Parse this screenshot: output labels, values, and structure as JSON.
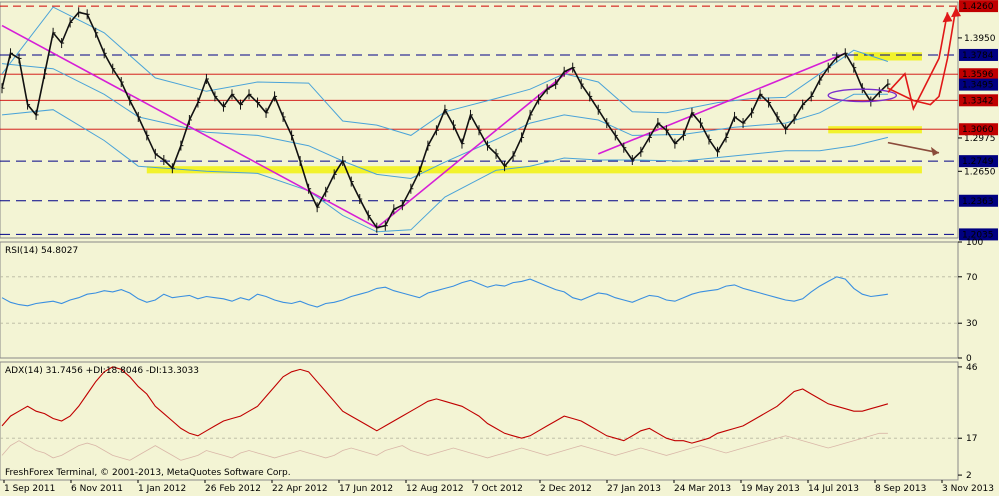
{
  "chart_data": {
    "type": "line",
    "colors": {
      "background": "#f3f4d4",
      "price": "#111111",
      "bands": "#4aa3d8",
      "trendline": "#d61ed6",
      "support_zone": "#f2f21a",
      "resistance_line": "#d00000",
      "dashed_level": "#000088",
      "rsi": "#3a8fe0",
      "adx": "#c00000",
      "projection": "#e01818",
      "arrow_brown": "#8a4b3a"
    },
    "x_labels": [
      "1 Sep 2011",
      "6 Nov 2011",
      "1 Jan 2012",
      "26 Feb 2012",
      "22 Apr 2012",
      "17 Jun 2012",
      "12 Aug 2012",
      "7 Oct 2012",
      "2 Dec 2012",
      "27 Jan 2013",
      "24 Mar 2013",
      "19 May 2013",
      "14 Jul 2013",
      "8 Sep 2013",
      "3 Nov 2013"
    ],
    "main": {
      "ylim": [
        1.2,
        1.43
      ],
      "y_ticks": [
        1.395,
        1.2975,
        1.265
      ],
      "tagged_levels": [
        {
          "label": "1.4260",
          "value": 1.426,
          "style": "red-box",
          "line": "dashed-red"
        },
        {
          "label": "1.3784",
          "value": 1.3784,
          "style": "blue-box",
          "line": "dashed-blue"
        },
        {
          "label": "1.3596",
          "value": 1.3596,
          "style": "red-box",
          "line": "solid-red"
        },
        {
          "label": "1.3495",
          "value": 1.3495,
          "style": "blue-box",
          "line": "none"
        },
        {
          "label": "1.3342",
          "value": 1.3342,
          "style": "red-box",
          "line": "solid-red"
        },
        {
          "label": "1.3060",
          "value": 1.306,
          "style": "red-box",
          "line": "solid-red"
        },
        {
          "label": "1.2749",
          "value": 1.2749,
          "style": "blue-box",
          "line": "dashed-blue"
        },
        {
          "label": "1.2363",
          "value": 1.2363,
          "style": "blue-box",
          "line": "dashed-blue"
        },
        {
          "label": "1.2035",
          "value": 1.2035,
          "style": "blue-box",
          "line": "dashed-blue"
        }
      ],
      "price_path": [
        [
          0,
          1.346
        ],
        [
          1,
          1.38
        ],
        [
          2,
          1.375
        ],
        [
          3,
          1.33
        ],
        [
          4,
          1.32
        ],
        [
          5,
          1.36
        ],
        [
          6,
          1.4
        ],
        [
          7,
          1.39
        ],
        [
          8,
          1.41
        ],
        [
          9,
          1.42
        ],
        [
          10,
          1.418
        ],
        [
          11,
          1.4
        ],
        [
          12,
          1.38
        ],
        [
          13,
          1.365
        ],
        [
          14,
          1.352
        ],
        [
          15,
          1.334
        ],
        [
          16,
          1.318
        ],
        [
          17,
          1.3
        ],
        [
          18,
          1.282
        ],
        [
          19,
          1.276
        ],
        [
          20,
          1.268
        ],
        [
          21,
          1.29
        ],
        [
          22,
          1.315
        ],
        [
          23,
          1.332
        ],
        [
          24,
          1.355
        ],
        [
          25,
          1.338
        ],
        [
          26,
          1.328
        ],
        [
          27,
          1.34
        ],
        [
          28,
          1.33
        ],
        [
          29,
          1.34
        ],
        [
          30,
          1.332
        ],
        [
          31,
          1.322
        ],
        [
          32,
          1.338
        ],
        [
          33,
          1.318
        ],
        [
          34,
          1.3
        ],
        [
          35,
          1.275
        ],
        [
          36,
          1.248
        ],
        [
          37,
          1.23
        ],
        [
          38,
          1.245
        ],
        [
          39,
          1.262
        ],
        [
          40,
          1.275
        ],
        [
          41,
          1.255
        ],
        [
          42,
          1.238
        ],
        [
          43,
          1.222
        ],
        [
          44,
          1.21
        ],
        [
          45,
          1.212
        ],
        [
          46,
          1.228
        ],
        [
          47,
          1.232
        ],
        [
          48,
          1.248
        ],
        [
          49,
          1.265
        ],
        [
          50,
          1.29
        ],
        [
          51,
          1.305
        ],
        [
          52,
          1.325
        ],
        [
          53,
          1.31
        ],
        [
          54,
          1.292
        ],
        [
          55,
          1.32
        ],
        [
          56,
          1.305
        ],
        [
          57,
          1.29
        ],
        [
          58,
          1.282
        ],
        [
          59,
          1.27
        ],
        [
          60,
          1.28
        ],
        [
          61,
          1.298
        ],
        [
          62,
          1.32
        ],
        [
          63,
          1.335
        ],
        [
          64,
          1.345
        ],
        [
          65,
          1.35
        ],
        [
          66,
          1.362
        ],
        [
          67,
          1.366
        ],
        [
          68,
          1.35
        ],
        [
          69,
          1.338
        ],
        [
          70,
          1.325
        ],
        [
          71,
          1.312
        ],
        [
          72,
          1.3
        ],
        [
          73,
          1.288
        ],
        [
          74,
          1.276
        ],
        [
          75,
          1.284
        ],
        [
          76,
          1.298
        ],
        [
          77,
          1.312
        ],
        [
          78,
          1.305
        ],
        [
          79,
          1.292
        ],
        [
          80,
          1.3
        ],
        [
          81,
          1.322
        ],
        [
          82,
          1.312
        ],
        [
          83,
          1.296
        ],
        [
          84,
          1.284
        ],
        [
          85,
          1.298
        ],
        [
          86,
          1.318
        ],
        [
          87,
          1.312
        ],
        [
          88,
          1.322
        ],
        [
          89,
          1.34
        ],
        [
          90,
          1.332
        ],
        [
          91,
          1.318
        ],
        [
          92,
          1.306
        ],
        [
          93,
          1.316
        ],
        [
          94,
          1.33
        ],
        [
          95,
          1.338
        ],
        [
          96,
          1.354
        ],
        [
          97,
          1.366
        ],
        [
          98,
          1.376
        ],
        [
          99,
          1.38
        ],
        [
          100,
          1.366
        ],
        [
          101,
          1.346
        ],
        [
          102,
          1.333
        ],
        [
          103,
          1.342
        ],
        [
          104,
          1.35
        ]
      ],
      "upper_band": [
        [
          0,
          1.36
        ],
        [
          6,
          1.425
        ],
        [
          12,
          1.4
        ],
        [
          18,
          1.356
        ],
        [
          24,
          1.343
        ],
        [
          30,
          1.352
        ],
        [
          36,
          1.351
        ],
        [
          40,
          1.314
        ],
        [
          44,
          1.31
        ],
        [
          48,
          1.3
        ],
        [
          52,
          1.323
        ],
        [
          58,
          1.336
        ],
        [
          62,
          1.345
        ],
        [
          66,
          1.36
        ],
        [
          70,
          1.352
        ],
        [
          74,
          1.323
        ],
        [
          78,
          1.322
        ],
        [
          84,
          1.332
        ],
        [
          88,
          1.336
        ],
        [
          92,
          1.337
        ],
        [
          96,
          1.36
        ],
        [
          100,
          1.383
        ],
        [
          104,
          1.372
        ]
      ],
      "lower_band": [
        [
          0,
          1.32
        ],
        [
          6,
          1.325
        ],
        [
          12,
          1.295
        ],
        [
          16,
          1.27
        ],
        [
          24,
          1.265
        ],
        [
          30,
          1.263
        ],
        [
          36,
          1.246
        ],
        [
          40,
          1.222
        ],
        [
          44,
          1.206
        ],
        [
          48,
          1.208
        ],
        [
          52,
          1.24
        ],
        [
          58,
          1.266
        ],
        [
          62,
          1.27
        ],
        [
          66,
          1.278
        ],
        [
          70,
          1.276
        ],
        [
          74,
          1.276
        ],
        [
          80,
          1.275
        ],
        [
          86,
          1.28
        ],
        [
          92,
          1.285
        ],
        [
          96,
          1.285
        ],
        [
          100,
          1.29
        ],
        [
          104,
          1.298
        ]
      ],
      "middle_band": [
        [
          0,
          1.37
        ],
        [
          6,
          1.365
        ],
        [
          12,
          1.34
        ],
        [
          16,
          1.318
        ],
        [
          24,
          1.303
        ],
        [
          30,
          1.3
        ],
        [
          36,
          1.29
        ],
        [
          40,
          1.275
        ],
        [
          44,
          1.262
        ],
        [
          48,
          1.258
        ],
        [
          52,
          1.274
        ],
        [
          58,
          1.296
        ],
        [
          62,
          1.312
        ],
        [
          66,
          1.32
        ],
        [
          70,
          1.315
        ],
        [
          74,
          1.3
        ],
        [
          80,
          1.301
        ],
        [
          86,
          1.308
        ],
        [
          92,
          1.312
        ],
        [
          96,
          1.322
        ],
        [
          100,
          1.34
        ],
        [
          104,
          1.34
        ]
      ],
      "trendlines": [
        [
          [
            0,
            1.407
          ],
          [
            44,
            1.21
          ]
        ],
        [
          [
            44,
            1.21
          ],
          [
            67,
            1.366
          ]
        ],
        [
          [
            70,
            1.282
          ],
          [
            99,
            1.38
          ]
        ]
      ]
    },
    "rsi": {
      "label": "RSI(14) 54.8027",
      "ylim": [
        0,
        100
      ],
      "y_ticks": [
        100,
        70,
        30,
        0
      ],
      "values": [
        52,
        48,
        46,
        45,
        47,
        48,
        49,
        47,
        50,
        52,
        55,
        56,
        58,
        57,
        59,
        56,
        51,
        48,
        50,
        55,
        52,
        53,
        54,
        51,
        53,
        52,
        51,
        49,
        52,
        50,
        55,
        53,
        50,
        48,
        47,
        49,
        46,
        44,
        47,
        48,
        50,
        53,
        55,
        57,
        60,
        61,
        58,
        56,
        54,
        52,
        56,
        58,
        60,
        62,
        65,
        67,
        64,
        61,
        63,
        62,
        65,
        66,
        68,
        65,
        62,
        59,
        57,
        52,
        50,
        53,
        56,
        55,
        52,
        50,
        48,
        51,
        54,
        53,
        50,
        49,
        52,
        55,
        57,
        58,
        59,
        62,
        63,
        60,
        58,
        56,
        54,
        52,
        50,
        49,
        51,
        57,
        62,
        66,
        70,
        68,
        60,
        55,
        53,
        54,
        55
      ]
    },
    "adx": {
      "label": "ADX(14) 31.7456 +DI:18.8046 -DI:13.3033",
      "ylim": [
        0,
        48
      ],
      "y_ticks": [
        46,
        17,
        2
      ],
      "values": [
        22,
        26,
        28,
        30,
        28,
        27,
        25,
        24,
        26,
        30,
        35,
        40,
        44,
        46,
        45,
        42,
        38,
        35,
        30,
        27,
        24,
        21,
        19,
        18,
        20,
        22,
        24,
        25,
        26,
        28,
        30,
        34,
        38,
        42,
        44,
        45,
        44,
        40,
        36,
        32,
        28,
        26,
        24,
        22,
        20,
        22,
        24,
        26,
        28,
        30,
        32,
        33,
        32,
        31,
        30,
        28,
        26,
        23,
        21,
        19,
        18,
        17,
        18,
        20,
        22,
        24,
        26,
        25,
        24,
        22,
        20,
        18,
        17,
        16,
        18,
        20,
        21,
        19,
        17,
        16,
        16,
        15,
        16,
        17,
        19,
        20,
        21,
        22,
        24,
        26,
        28,
        30,
        33,
        36,
        37,
        35,
        33,
        31,
        30,
        29,
        28,
        28,
        29,
        30,
        31
      ],
      "di_values": [
        10,
        14,
        16,
        14,
        12,
        11,
        9,
        10,
        12,
        14,
        15,
        14,
        12,
        10,
        9,
        8,
        10,
        12,
        14,
        12,
        10,
        8,
        9,
        10,
        12,
        11,
        10,
        9,
        11,
        12,
        11,
        10,
        9,
        10,
        11,
        12,
        11,
        10,
        9,
        10,
        12,
        13,
        12,
        11,
        10,
        12,
        13,
        14,
        12,
        11,
        10,
        11,
        12,
        13,
        12,
        11,
        10,
        9,
        10,
        11,
        12,
        13,
        12,
        11,
        10,
        11,
        12,
        13,
        14,
        13,
        12,
        11,
        10,
        11,
        12,
        13,
        12,
        11,
        10,
        11,
        12,
        13,
        14,
        13,
        12,
        11,
        12,
        13,
        14,
        15,
        16,
        17,
        18,
        17,
        16,
        15,
        14,
        13,
        14,
        15,
        16,
        17,
        18,
        19,
        19
      ]
    },
    "projection": {
      "arrow1": [
        [
          104,
          1.342
        ],
        [
          106,
          1.36
        ],
        [
          107,
          1.326
        ],
        [
          108,
          1.342
        ],
        [
          110,
          1.375
        ],
        [
          111,
          1.42
        ]
      ],
      "arrow2": [
        [
          104,
          1.346
        ],
        [
          107,
          1.334
        ],
        [
          109,
          1.33
        ],
        [
          110,
          1.338
        ],
        [
          111,
          1.375
        ],
        [
          112,
          1.425
        ]
      ],
      "brown_arrow": [
        [
          104,
          1.293
        ],
        [
          110,
          1.283
        ]
      ]
    },
    "support_zones": [
      {
        "y0": 1.263,
        "y1": 1.27,
        "x0": 17,
        "x1": 108
      },
      {
        "y0": 1.302,
        "y1": 1.309,
        "x0": 97,
        "x1": 108
      },
      {
        "y0": 1.373,
        "y1": 1.381,
        "x0": 100,
        "x1": 108
      }
    ],
    "ellipses": [
      {
        "cx": 101,
        "cy": 1.339,
        "rx": 4,
        "ry": 0.006
      }
    ]
  },
  "footer": "FreshForex Terminal, © 2001-2013, MetaQuotes Software Corp."
}
